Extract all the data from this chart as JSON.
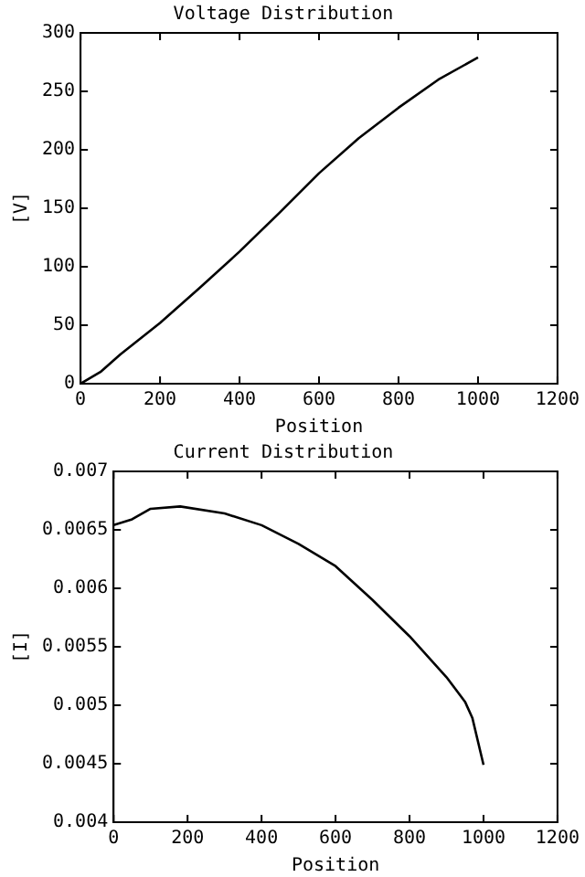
{
  "chart_data": [
    {
      "type": "line",
      "title": "Voltage Distribution",
      "xlabel": "Position",
      "ylabel": "[V]",
      "x": [
        0,
        50,
        100,
        200,
        300,
        400,
        500,
        600,
        700,
        800,
        900,
        1000
      ],
      "series": [
        {
          "color": "#000000",
          "values": [
            0,
            10,
            25,
            52,
            82,
            113,
            146,
            180,
            210,
            236,
            260,
            279
          ]
        }
      ],
      "xlim": [
        0,
        1200
      ],
      "xticks": [
        0,
        200,
        400,
        600,
        800,
        1000,
        1200
      ],
      "ylim": [
        0,
        300
      ],
      "yticks": [
        0,
        50,
        100,
        150,
        200,
        250,
        300
      ],
      "grid": false,
      "legend": false,
      "marker": "none",
      "line_style": "solid"
    },
    {
      "type": "line",
      "title": "Current Distribution",
      "xlabel": "Position",
      "ylabel": "[I]",
      "x": [
        0,
        50,
        100,
        180,
        300,
        400,
        500,
        600,
        700,
        800,
        900,
        950,
        970,
        1000
      ],
      "series": [
        {
          "color": "#000000",
          "values": [
            0.00654,
            0.00659,
            0.00668,
            0.0067,
            0.00664,
            0.00654,
            0.00638,
            0.00619,
            0.0059,
            0.00559,
            0.00524,
            0.00503,
            0.00489,
            0.00449
          ]
        }
      ],
      "xlim": [
        0,
        1200
      ],
      "xticks": [
        0,
        200,
        400,
        600,
        800,
        1000,
        1200
      ],
      "ylim": [
        0.004,
        0.007
      ],
      "yticks": [
        0.004,
        0.0045,
        0.005,
        0.0055,
        0.006,
        0.0065,
        0.007
      ],
      "grid": false,
      "legend": false,
      "marker": "none",
      "line_style": "solid"
    }
  ]
}
